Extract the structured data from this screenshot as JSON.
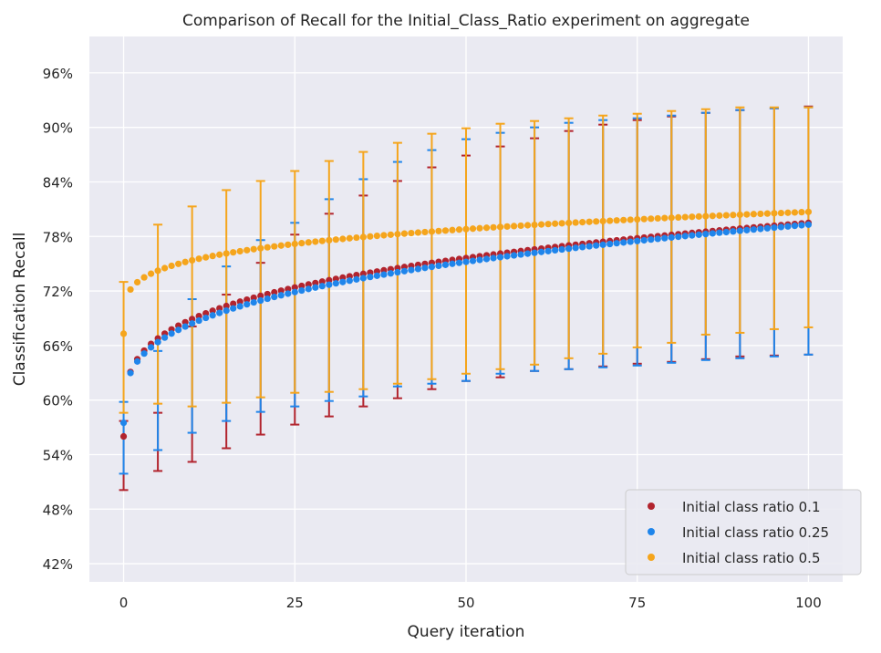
{
  "chart_data": {
    "type": "scatter",
    "title": "Comparison of Recall for the Initial_Class_Ratio experiment on aggregate",
    "xlabel": "Query iteration",
    "ylabel": "Classification Recall",
    "xlim": [
      -5,
      105
    ],
    "ylim": [
      40,
      100
    ],
    "x_ticks": [
      0,
      25,
      50,
      75,
      100
    ],
    "x_tick_labels": [
      "0",
      "25",
      "50",
      "75",
      "100"
    ],
    "y_ticks": [
      42,
      48,
      54,
      60,
      66,
      72,
      78,
      84,
      90,
      96
    ],
    "y_tick_labels": [
      "42%",
      "48%",
      "54%",
      "60%",
      "66%",
      "72%",
      "78%",
      "84%",
      "90%",
      "96%"
    ],
    "grid": true,
    "legend_position": "bottom-right",
    "background": "#eaeaf2",
    "series": [
      {
        "name": "Initial class ratio 0.1",
        "color": "#b2242e",
        "curve": {
          "start": 56.0,
          "end": 79.5,
          "shape": 0.26
        },
        "error_bars": [
          {
            "x": 0,
            "low": 50.1,
            "high": 57.7
          },
          {
            "x": 5,
            "low": 52.2,
            "high": 58.6
          },
          {
            "x": 10,
            "low": 53.2,
            "high": 68.1
          },
          {
            "x": 15,
            "low": 54.7,
            "high": 71.6
          },
          {
            "x": 20,
            "low": 56.2,
            "high": 75.1
          },
          {
            "x": 25,
            "low": 57.3,
            "high": 78.2
          },
          {
            "x": 30,
            "low": 58.2,
            "high": 80.5
          },
          {
            "x": 35,
            "low": 59.3,
            "high": 82.5
          },
          {
            "x": 40,
            "low": 60.2,
            "high": 84.1
          },
          {
            "x": 45,
            "low": 61.2,
            "high": 85.6
          },
          {
            "x": 50,
            "low": 62.1,
            "high": 86.9
          },
          {
            "x": 55,
            "low": 62.5,
            "high": 87.9
          },
          {
            "x": 60,
            "low": 63.2,
            "high": 88.8
          },
          {
            "x": 65,
            "low": 63.4,
            "high": 89.6
          },
          {
            "x": 70,
            "low": 63.7,
            "high": 90.3
          },
          {
            "x": 75,
            "low": 64.0,
            "high": 90.8
          },
          {
            "x": 80,
            "low": 64.2,
            "high": 91.2
          },
          {
            "x": 85,
            "low": 64.5,
            "high": 91.6
          },
          {
            "x": 90,
            "low": 64.8,
            "high": 91.9
          },
          {
            "x": 95,
            "low": 64.9,
            "high": 92.1
          },
          {
            "x": 100,
            "low": 65.0,
            "high": 92.3
          }
        ]
      },
      {
        "name": "Initial class ratio 0.25",
        "color": "#1f85eb",
        "curve": {
          "start": 57.5,
          "end": 79.3,
          "shape": 0.3
        },
        "error_bars": [
          {
            "x": 0,
            "low": 51.9,
            "high": 59.8
          },
          {
            "x": 5,
            "low": 54.5,
            "high": 65.4
          },
          {
            "x": 10,
            "low": 56.4,
            "high": 71.1
          },
          {
            "x": 15,
            "low": 57.7,
            "high": 74.7
          },
          {
            "x": 20,
            "low": 58.7,
            "high": 77.6
          },
          {
            "x": 25,
            "low": 59.3,
            "high": 79.5
          },
          {
            "x": 30,
            "low": 59.9,
            "high": 82.1
          },
          {
            "x": 35,
            "low": 60.4,
            "high": 84.3
          },
          {
            "x": 40,
            "low": 61.5,
            "high": 86.2
          },
          {
            "x": 45,
            "low": 61.8,
            "high": 87.5
          },
          {
            "x": 50,
            "low": 62.1,
            "high": 88.7
          },
          {
            "x": 55,
            "low": 62.9,
            "high": 89.4
          },
          {
            "x": 60,
            "low": 63.2,
            "high": 90.0
          },
          {
            "x": 65,
            "low": 63.4,
            "high": 90.5
          },
          {
            "x": 70,
            "low": 63.6,
            "high": 90.8
          },
          {
            "x": 75,
            "low": 63.8,
            "high": 91.0
          },
          {
            "x": 80,
            "low": 64.1,
            "high": 91.3
          },
          {
            "x": 85,
            "low": 64.4,
            "high": 91.6
          },
          {
            "x": 90,
            "low": 64.6,
            "high": 91.9
          },
          {
            "x": 95,
            "low": 64.8,
            "high": 92.1
          },
          {
            "x": 100,
            "low": 65.0,
            "high": 92.2
          }
        ]
      },
      {
        "name": "Initial class ratio 0.5",
        "color": "#f5a51c",
        "curve": {
          "start": 67.3,
          "end": 80.7,
          "shape": 0.22
        },
        "error_bars": [
          {
            "x": 0,
            "low": 58.6,
            "high": 73.0
          },
          {
            "x": 5,
            "low": 59.6,
            "high": 79.3
          },
          {
            "x": 10,
            "low": 59.3,
            "high": 81.3
          },
          {
            "x": 15,
            "low": 59.7,
            "high": 83.1
          },
          {
            "x": 20,
            "low": 60.3,
            "high": 84.1
          },
          {
            "x": 25,
            "low": 60.8,
            "high": 85.2
          },
          {
            "x": 30,
            "low": 60.9,
            "high": 86.3
          },
          {
            "x": 35,
            "low": 61.2,
            "high": 87.3
          },
          {
            "x": 40,
            "low": 61.8,
            "high": 88.3
          },
          {
            "x": 45,
            "low": 62.3,
            "high": 89.3
          },
          {
            "x": 50,
            "low": 62.9,
            "high": 89.9
          },
          {
            "x": 55,
            "low": 63.4,
            "high": 90.4
          },
          {
            "x": 60,
            "low": 63.9,
            "high": 90.7
          },
          {
            "x": 65,
            "low": 64.6,
            "high": 91.0
          },
          {
            "x": 70,
            "low": 65.1,
            "high": 91.3
          },
          {
            "x": 75,
            "low": 65.8,
            "high": 91.5
          },
          {
            "x": 80,
            "low": 66.3,
            "high": 91.8
          },
          {
            "x": 85,
            "low": 67.2,
            "high": 92.0
          },
          {
            "x": 90,
            "low": 67.4,
            "high": 92.2
          },
          {
            "x": 95,
            "low": 67.8,
            "high": 92.2
          },
          {
            "x": 100,
            "low": 68.0,
            "high": 92.2
          }
        ]
      }
    ]
  }
}
